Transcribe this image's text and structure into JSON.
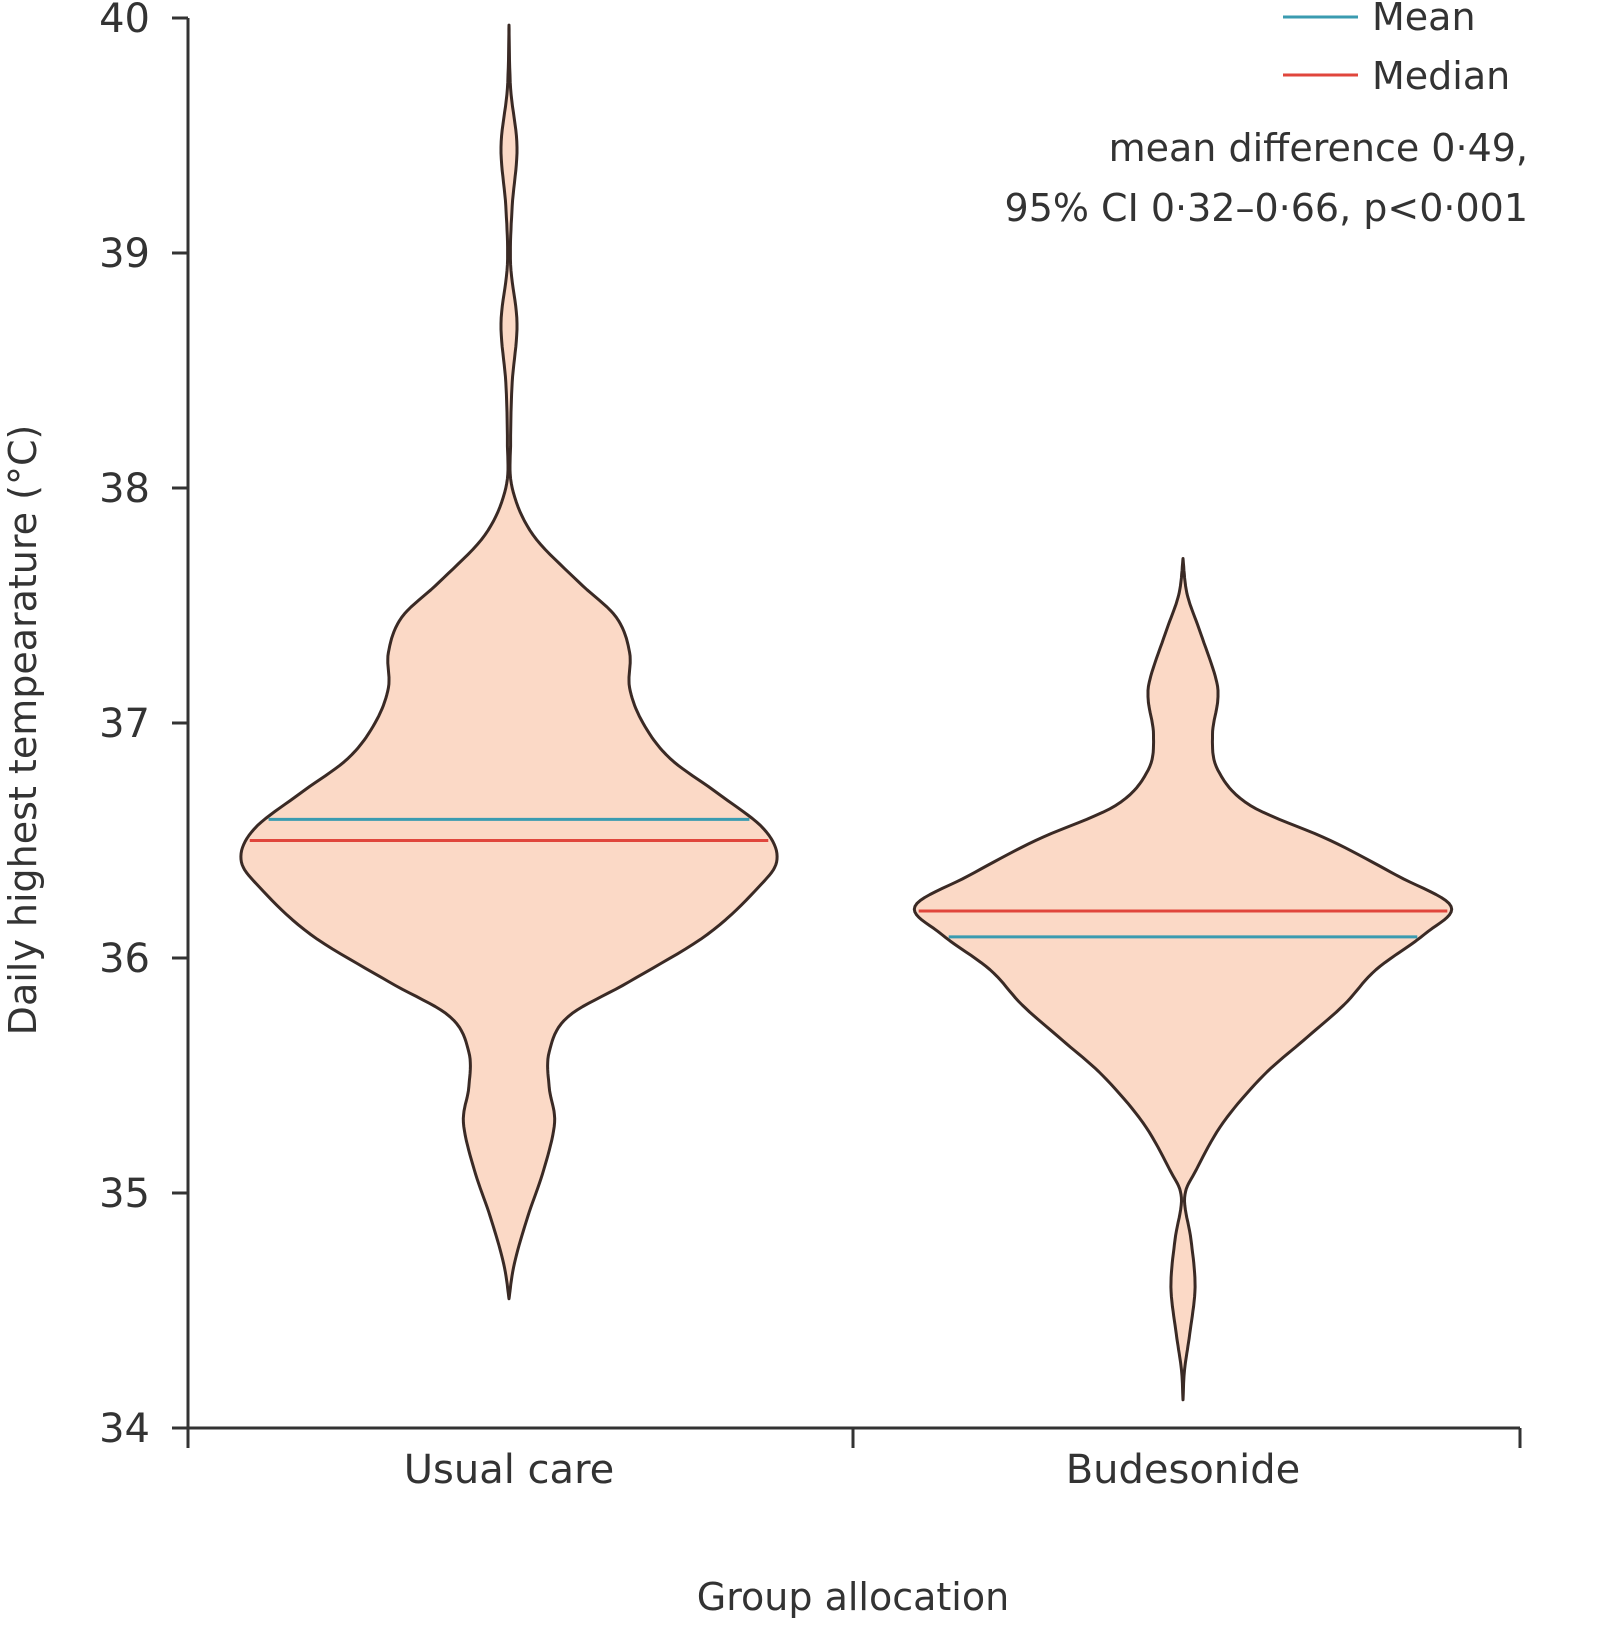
{
  "chart_data": {
    "type": "violin",
    "title": "",
    "xlabel": "Group allocation",
    "ylabel": "Daily highest tempearature (°C)",
    "ylim": [
      34,
      40
    ],
    "yticks": [
      "34",
      "35",
      "36",
      "37",
      "38",
      "39",
      "40"
    ],
    "categories": [
      "Usual care",
      "Budesonide"
    ],
    "grid": false,
    "legend": {
      "placement": "top-right",
      "entries": [
        {
          "label": "Mean",
          "color": "#3a9bb0"
        },
        {
          "label": "Median",
          "color": "#e0463c"
        }
      ]
    },
    "annotation": [
      "mean difference 0·49,",
      "95% CI 0·32–0·66, p<0·001"
    ],
    "colors": {
      "fill": "#fbd9c6",
      "outline": "#3a2a25",
      "mean": "#3a9bb0",
      "median": "#e0463c"
    },
    "series": [
      {
        "category": "Usual care",
        "mean": 36.59,
        "median": 36.5,
        "density_profile": [
          [
            34.55,
            0
          ],
          [
            34.7,
            0.02
          ],
          [
            34.9,
            0.07
          ],
          [
            35.1,
            0.13
          ],
          [
            35.3,
            0.17
          ],
          [
            35.45,
            0.15
          ],
          [
            35.6,
            0.15
          ],
          [
            35.75,
            0.22
          ],
          [
            35.9,
            0.45
          ],
          [
            36.1,
            0.74
          ],
          [
            36.3,
            0.93
          ],
          [
            36.42,
            1.0
          ],
          [
            36.55,
            0.95
          ],
          [
            36.7,
            0.78
          ],
          [
            36.85,
            0.6
          ],
          [
            37.0,
            0.5
          ],
          [
            37.15,
            0.45
          ],
          [
            37.3,
            0.45
          ],
          [
            37.45,
            0.4
          ],
          [
            37.6,
            0.26
          ],
          [
            37.8,
            0.09
          ],
          [
            38.0,
            0.012
          ],
          [
            38.2,
            0.006
          ],
          [
            38.45,
            0.012
          ],
          [
            38.7,
            0.03
          ],
          [
            38.95,
            0.006
          ],
          [
            39.2,
            0.012
          ],
          [
            39.45,
            0.03
          ],
          [
            39.7,
            0.006
          ],
          [
            39.97,
            0
          ]
        ]
      },
      {
        "category": "Budesonide",
        "mean": 36.09,
        "median": 36.2,
        "density_profile": [
          [
            34.12,
            0
          ],
          [
            34.25,
            0.006
          ],
          [
            34.4,
            0.025
          ],
          [
            34.6,
            0.045
          ],
          [
            34.8,
            0.03
          ],
          [
            34.98,
            0.006
          ],
          [
            35.1,
            0.05
          ],
          [
            35.3,
            0.15
          ],
          [
            35.5,
            0.3
          ],
          [
            35.65,
            0.45
          ],
          [
            35.8,
            0.6
          ],
          [
            35.95,
            0.72
          ],
          [
            36.1,
            0.9
          ],
          [
            36.22,
            1.0
          ],
          [
            36.35,
            0.8
          ],
          [
            36.5,
            0.55
          ],
          [
            36.65,
            0.25
          ],
          [
            36.8,
            0.13
          ],
          [
            36.95,
            0.11
          ],
          [
            37.1,
            0.13
          ],
          [
            37.2,
            0.12
          ],
          [
            37.4,
            0.06
          ],
          [
            37.55,
            0.015
          ],
          [
            37.7,
            0
          ]
        ]
      }
    ]
  }
}
